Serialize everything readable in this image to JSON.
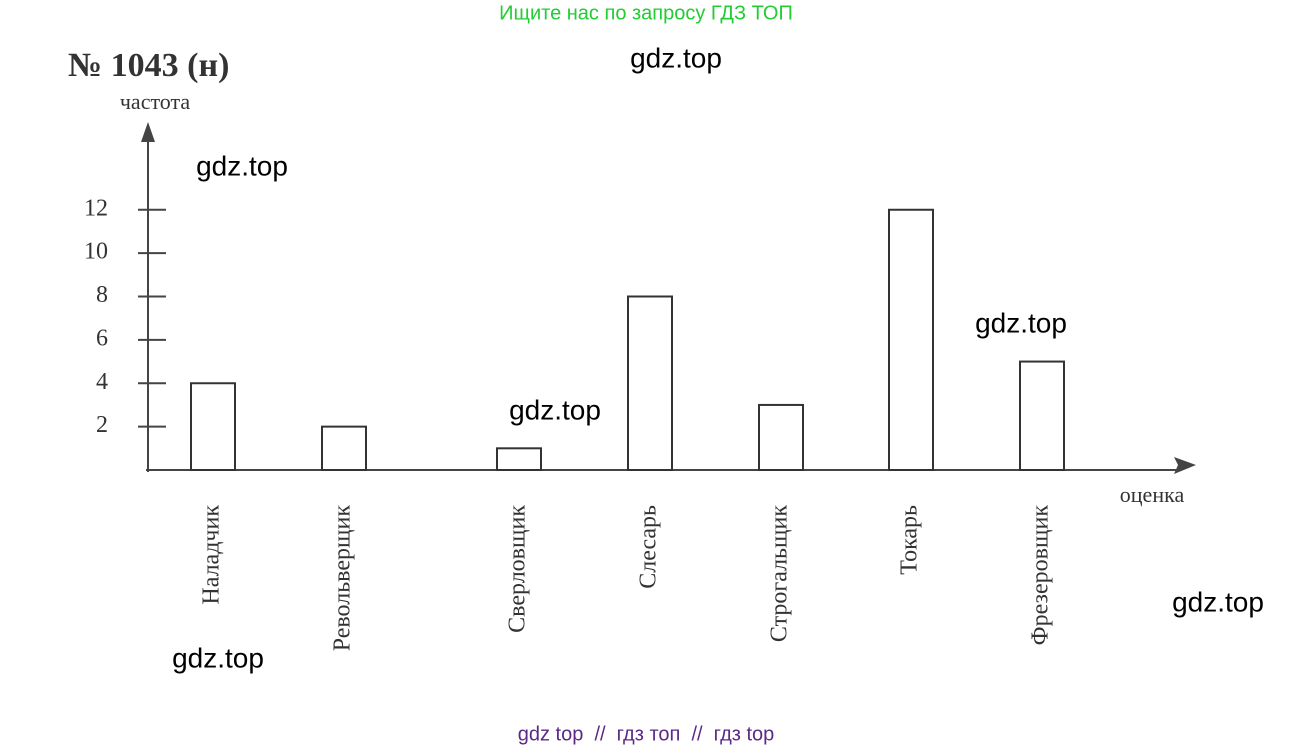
{
  "chart_data": {
    "type": "bar",
    "title": "№ 1043 (н)",
    "y_label": "частота",
    "x_label": "оценка",
    "categories": [
      "Наладчик",
      "Револьверщик",
      "Сверловщик",
      "Слесарь",
      "Строгальщик",
      "Токарь",
      "Фрезеровщик"
    ],
    "values": [
      4,
      2,
      1,
      8,
      3,
      12,
      5
    ],
    "color": "#ffffff",
    "ylim": [
      0,
      16
    ],
    "yticks": [
      2,
      4,
      6,
      8,
      10,
      12
    ],
    "grid": false
  },
  "watermarks": {
    "header": "Ищите нас по запросу ГДЗ ТОП",
    "marks": [
      "gdz.top",
      "gdz.top",
      "gdz.top",
      "gdz.top",
      "gdz.top",
      "gdz.top"
    ],
    "footer": "gdz top  //  гдз топ  //  гдз top"
  }
}
